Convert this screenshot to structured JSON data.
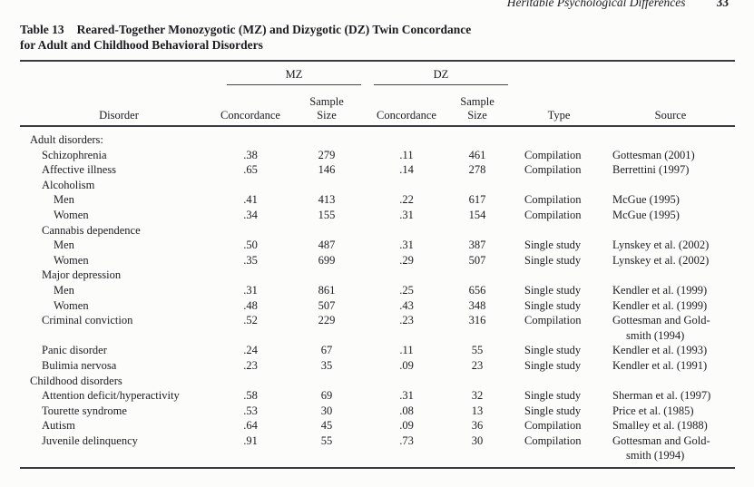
{
  "page": {
    "running_head": "Heritable Psychological Differences",
    "page_number": "33"
  },
  "table": {
    "caption_label": "Table 13",
    "caption_line1": "Reared-Together Monozygotic (MZ) and Dizygotic (DZ) Twin Concordance",
    "caption_line2": "for Adult and Childhood Behavioral Disorders",
    "col_groups": {
      "mz": "MZ",
      "dz": "DZ"
    },
    "headers": {
      "disorder": "Disorder",
      "concordance_mz": "Concordance",
      "sample": "Sample",
      "size": "Size",
      "concordance_dz": "Concordance",
      "type": "Type",
      "source": "Source"
    },
    "rows": [
      {
        "indent": 0,
        "disorder": "Adult disorders:",
        "mz_concordance": "",
        "mz_n": "",
        "dz_concordance": "",
        "dz_n": "",
        "type": "",
        "source": ""
      },
      {
        "indent": 1,
        "disorder": "Schizophrenia",
        "mz_concordance": ".38",
        "mz_n": "279",
        "dz_concordance": ".11",
        "dz_n": "461",
        "type": "Compilation",
        "source": "Gottesman (2001)"
      },
      {
        "indent": 1,
        "disorder": "Affective illness",
        "mz_concordance": ".65",
        "mz_n": "146",
        "dz_concordance": ".14",
        "dz_n": "278",
        "type": "Compilation",
        "source": "Berrettini (1997)"
      },
      {
        "indent": 1,
        "disorder": "Alcoholism",
        "mz_concordance": "",
        "mz_n": "",
        "dz_concordance": "",
        "dz_n": "",
        "type": "",
        "source": ""
      },
      {
        "indent": 2,
        "disorder": "Men",
        "mz_concordance": ".41",
        "mz_n": "413",
        "dz_concordance": ".22",
        "dz_n": "617",
        "type": "Compilation",
        "source": "McGue (1995)"
      },
      {
        "indent": 2,
        "disorder": "Women",
        "mz_concordance": ".34",
        "mz_n": "155",
        "dz_concordance": ".31",
        "dz_n": "154",
        "type": "Compilation",
        "source": "McGue (1995)"
      },
      {
        "indent": 1,
        "disorder": "Cannabis dependence",
        "mz_concordance": "",
        "mz_n": "",
        "dz_concordance": "",
        "dz_n": "",
        "type": "",
        "source": ""
      },
      {
        "indent": 2,
        "disorder": "Men",
        "mz_concordance": ".50",
        "mz_n": "487",
        "dz_concordance": ".31",
        "dz_n": "387",
        "type": "Single study",
        "source": "Lynskey et al. (2002)"
      },
      {
        "indent": 2,
        "disorder": "Women",
        "mz_concordance": ".35",
        "mz_n": "699",
        "dz_concordance": ".29",
        "dz_n": "507",
        "type": "Single study",
        "source": "Lynskey et al. (2002)"
      },
      {
        "indent": 1,
        "disorder": "Major depression",
        "mz_concordance": "",
        "mz_n": "",
        "dz_concordance": "",
        "dz_n": "",
        "type": "",
        "source": ""
      },
      {
        "indent": 2,
        "disorder": "Men",
        "mz_concordance": ".31",
        "mz_n": "861",
        "dz_concordance": ".25",
        "dz_n": "656",
        "type": "Single study",
        "source": "Kendler et al. (1999)"
      },
      {
        "indent": 2,
        "disorder": "Women",
        "mz_concordance": ".48",
        "mz_n": "507",
        "dz_concordance": ".43",
        "dz_n": "348",
        "type": "Single study",
        "source": "Kendler et al. (1999)"
      },
      {
        "indent": 1,
        "disorder": "Criminal conviction",
        "mz_concordance": ".52",
        "mz_n": "229",
        "dz_concordance": ".23",
        "dz_n": "316",
        "type": "Compilation",
        "source": "Gottesman and Gold-\nsmith (1994)"
      },
      {
        "indent": 1,
        "disorder": "Panic disorder",
        "mz_concordance": ".24",
        "mz_n": "67",
        "dz_concordance": ".11",
        "dz_n": "55",
        "type": "Single study",
        "source": "Kendler et al. (1993)"
      },
      {
        "indent": 1,
        "disorder": "Bulimia nervosa",
        "mz_concordance": ".23",
        "mz_n": "35",
        "dz_concordance": ".09",
        "dz_n": "23",
        "type": "Single study",
        "source": "Kendler et al. (1991)"
      },
      {
        "indent": 0,
        "disorder": "Childhood disorders",
        "mz_concordance": "",
        "mz_n": "",
        "dz_concordance": "",
        "dz_n": "",
        "type": "",
        "source": ""
      },
      {
        "indent": 1,
        "disorder": "Attention deficit/hyperactivity",
        "mz_concordance": ".58",
        "mz_n": "69",
        "dz_concordance": ".31",
        "dz_n": "32",
        "type": "Single study",
        "source": "Sherman et al. (1997)"
      },
      {
        "indent": 1,
        "disorder": "Tourette syndrome",
        "mz_concordance": ".53",
        "mz_n": "30",
        "dz_concordance": ".08",
        "dz_n": "13",
        "type": "Single study",
        "source": "Price et al. (1985)"
      },
      {
        "indent": 1,
        "disorder": "Autism",
        "mz_concordance": ".64",
        "mz_n": "45",
        "dz_concordance": ".09",
        "dz_n": "36",
        "type": "Compilation",
        "source": "Smalley et al. (1988)"
      },
      {
        "indent": 1,
        "disorder": "Juvenile delinquency",
        "mz_concordance": ".91",
        "mz_n": "55",
        "dz_concordance": ".73",
        "dz_n": "30",
        "type": "Compilation",
        "source": "Gottesman and Gold-\nsmith (1994)"
      }
    ]
  }
}
